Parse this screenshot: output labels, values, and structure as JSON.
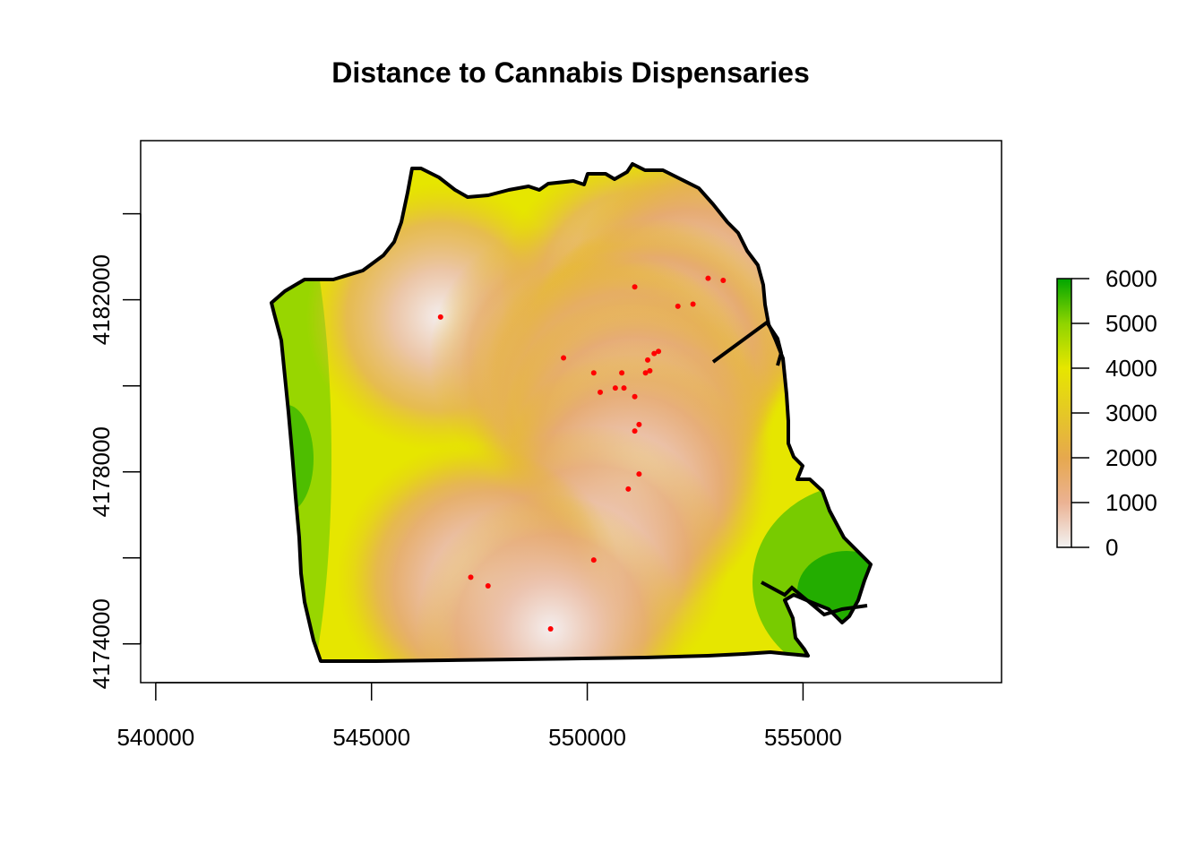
{
  "title": "Distance to Cannabis Dispensaries",
  "x_axis": {
    "ticks": [
      540000,
      545000,
      550000,
      555000
    ],
    "tick_labels": [
      "540000",
      "545000",
      "550000",
      "555000"
    ],
    "range": [
      539650,
      559600
    ]
  },
  "y_axis": {
    "ticks": [
      4174000,
      4176000,
      4178000,
      4180000,
      4182000,
      4184000
    ],
    "tick_labels": [
      "4174000",
      "",
      "4178000",
      "",
      "4182000",
      ""
    ],
    "range": [
      4173100,
      4185700
    ]
  },
  "legend": {
    "placement": "right",
    "min": 0,
    "max": 6000,
    "tick_labels": [
      "6000",
      "5000",
      "4000",
      "3000",
      "2000",
      "1000",
      "0"
    ],
    "gradient": [
      "#f2f2f2",
      "#ebb293",
      "#e6a84e",
      "#e5c826",
      "#e6e600",
      "#8fd400",
      "#00a600"
    ]
  },
  "chart_data": {
    "type": "raster",
    "title": "Distance to Cannabis Dispensaries",
    "value_range": [
      0,
      6000
    ],
    "colors": {
      "boundary": "#000000",
      "points": "#ff0000",
      "low": "#f2f2f2",
      "high": "#00a600"
    },
    "dispensaries": [
      {
        "x": 546600,
        "y": 4181600
      },
      {
        "x": 549450,
        "y": 4180650
      },
      {
        "x": 551100,
        "y": 4182300
      },
      {
        "x": 552800,
        "y": 4182500
      },
      {
        "x": 553150,
        "y": 4182450
      },
      {
        "x": 552100,
        "y": 4181850
      },
      {
        "x": 552450,
        "y": 4181900
      },
      {
        "x": 550150,
        "y": 4180300
      },
      {
        "x": 550800,
        "y": 4180300
      },
      {
        "x": 551350,
        "y": 4180300
      },
      {
        "x": 551450,
        "y": 4180350
      },
      {
        "x": 551400,
        "y": 4180600
      },
      {
        "x": 551550,
        "y": 4180750
      },
      {
        "x": 551650,
        "y": 4180800
      },
      {
        "x": 550300,
        "y": 4179850
      },
      {
        "x": 550650,
        "y": 4179950
      },
      {
        "x": 550850,
        "y": 4179950
      },
      {
        "x": 551100,
        "y": 4179750
      },
      {
        "x": 551200,
        "y": 4179100
      },
      {
        "x": 551100,
        "y": 4178950
      },
      {
        "x": 551200,
        "y": 4177950
      },
      {
        "x": 550950,
        "y": 4177600
      },
      {
        "x": 550150,
        "y": 4175950
      },
      {
        "x": 547300,
        "y": 4175550
      },
      {
        "x": 547700,
        "y": 4175350
      },
      {
        "x": 549150,
        "y": 4174350
      }
    ]
  }
}
